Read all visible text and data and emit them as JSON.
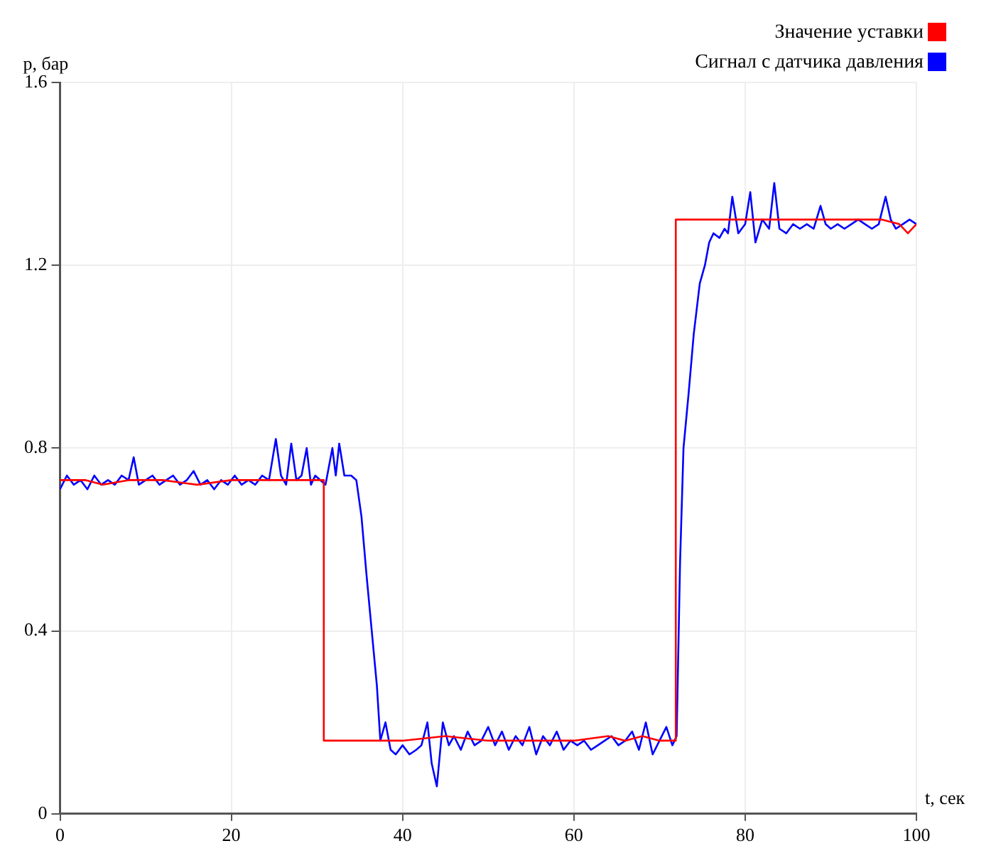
{
  "chart_data": {
    "type": "line",
    "xlabel": "t, сек",
    "ylabel": "p, бар",
    "xlim": [
      0,
      100
    ],
    "ylim": [
      0,
      1.6
    ],
    "xticks": [
      0,
      20,
      40,
      60,
      80,
      100
    ],
    "yticks": [
      0,
      0.4,
      0.8,
      1.2,
      1.6
    ],
    "grid": true,
    "legend": "top right",
    "marker": "none",
    "line_style": "solid",
    "series": [
      {
        "name": "Значение уставки",
        "color": "#ff0000",
        "x": [
          0,
          3,
          5,
          8,
          12,
          16,
          20,
          24,
          28,
          30.8,
          30.8,
          35,
          40,
          45,
          50,
          55,
          60,
          64,
          66,
          68,
          70,
          71.9,
          71.9,
          76,
          80,
          84,
          88,
          92,
          96,
          98,
          99,
          100
        ],
        "values": [
          0.73,
          0.73,
          0.72,
          0.73,
          0.73,
          0.72,
          0.73,
          0.73,
          0.73,
          0.73,
          0.16,
          0.16,
          0.16,
          0.17,
          0.16,
          0.16,
          0.16,
          0.17,
          0.16,
          0.17,
          0.16,
          0.16,
          1.3,
          1.3,
          1.3,
          1.3,
          1.3,
          1.3,
          1.3,
          1.29,
          1.27,
          1.29
        ]
      },
      {
        "name": "Сигнал с датчика давления",
        "color": "#0000ff",
        "x": [
          0,
          0.8,
          1.6,
          2.4,
          3.2,
          4,
          4.8,
          5.6,
          6.4,
          7.2,
          8,
          8.6,
          9.2,
          10,
          10.8,
          11.6,
          12.4,
          13.2,
          14,
          14.8,
          15.6,
          16.4,
          17.2,
          18,
          18.8,
          19.6,
          20.4,
          21.2,
          22,
          22.8,
          23.6,
          24.4,
          25.2,
          25.8,
          26.4,
          27,
          27.6,
          28.2,
          28.8,
          29.3,
          29.8,
          30.4,
          31,
          31.8,
          32.2,
          32.6,
          33.2,
          34,
          34.6,
          35.2,
          35.8,
          36.4,
          37,
          37.4,
          38,
          38.6,
          39.2,
          40,
          40.8,
          41.6,
          42.2,
          42.9,
          43.4,
          44,
          44.7,
          45.4,
          46,
          46.8,
          47.6,
          48.4,
          49.2,
          50,
          50.8,
          51.6,
          52.4,
          53.2,
          54,
          54.8,
          55.6,
          56.4,
          57.2,
          58,
          58.8,
          59.6,
          60.4,
          61.2,
          62,
          62.8,
          63.6,
          64.4,
          65.2,
          66,
          66.8,
          67.6,
          68.4,
          69.2,
          70,
          70.8,
          71.5,
          72,
          72.4,
          72.8,
          73.4,
          74,
          74.7,
          75.3,
          75.8,
          76.3,
          77,
          77.6,
          78,
          78.5,
          79.2,
          80,
          80.6,
          81.2,
          82,
          82.8,
          83.4,
          84,
          84.8,
          85.6,
          86.4,
          87.2,
          88,
          88.8,
          89.4,
          90,
          90.8,
          91.6,
          92.4,
          93.2,
          94,
          94.8,
          95.6,
          96.4,
          97,
          97.6,
          98.4,
          99.2,
          100
        ],
        "values": [
          0.71,
          0.74,
          0.72,
          0.73,
          0.71,
          0.74,
          0.72,
          0.73,
          0.72,
          0.74,
          0.73,
          0.78,
          0.72,
          0.73,
          0.74,
          0.72,
          0.73,
          0.74,
          0.72,
          0.73,
          0.75,
          0.72,
          0.73,
          0.71,
          0.73,
          0.72,
          0.74,
          0.72,
          0.73,
          0.72,
          0.74,
          0.73,
          0.82,
          0.74,
          0.72,
          0.81,
          0.73,
          0.74,
          0.8,
          0.72,
          0.74,
          0.73,
          0.72,
          0.8,
          0.74,
          0.81,
          0.74,
          0.74,
          0.73,
          0.65,
          0.52,
          0.4,
          0.28,
          0.16,
          0.2,
          0.14,
          0.13,
          0.15,
          0.13,
          0.14,
          0.15,
          0.2,
          0.11,
          0.06,
          0.2,
          0.15,
          0.17,
          0.14,
          0.18,
          0.15,
          0.16,
          0.19,
          0.15,
          0.18,
          0.14,
          0.17,
          0.15,
          0.19,
          0.13,
          0.17,
          0.15,
          0.18,
          0.14,
          0.16,
          0.15,
          0.16,
          0.14,
          0.15,
          0.16,
          0.17,
          0.15,
          0.16,
          0.18,
          0.14,
          0.2,
          0.13,
          0.16,
          0.19,
          0.15,
          0.17,
          0.55,
          0.8,
          0.92,
          1.05,
          1.16,
          1.2,
          1.25,
          1.27,
          1.26,
          1.28,
          1.27,
          1.35,
          1.27,
          1.29,
          1.36,
          1.25,
          1.3,
          1.28,
          1.38,
          1.28,
          1.27,
          1.29,
          1.28,
          1.29,
          1.28,
          1.33,
          1.29,
          1.28,
          1.29,
          1.28,
          1.29,
          1.3,
          1.29,
          1.28,
          1.29,
          1.35,
          1.3,
          1.28,
          1.29,
          1.3,
          1.29
        ]
      }
    ]
  }
}
